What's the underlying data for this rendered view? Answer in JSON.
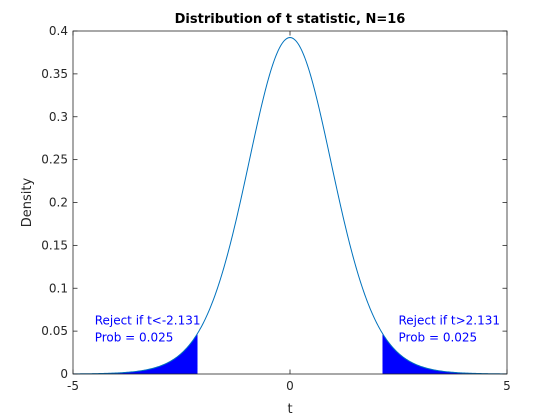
{
  "chart_data": {
    "type": "line",
    "title": "Distribution of t statistic, N=16",
    "xlabel": "t",
    "ylabel": "Density",
    "xlim": [
      -5,
      5
    ],
    "ylim": [
      0,
      0.4
    ],
    "x_ticks": [
      -5,
      0,
      5
    ],
    "y_ticks": [
      0,
      0.05,
      0.1,
      0.15,
      0.2,
      0.25,
      0.3,
      0.35,
      0.4
    ],
    "x_tick_labels": [
      "-5",
      "0",
      "5"
    ],
    "y_tick_labels": [
      "0",
      "0.05",
      "0.1",
      "0.15",
      "0.2",
      "0.25",
      "0.3",
      "0.35",
      "0.4"
    ],
    "grid": false,
    "series": [
      {
        "distribution": "Student t",
        "degrees_of_freedom": 15,
        "color": "#0072bd"
      }
    ],
    "critical_values": [
      -2.131,
      2.131
    ],
    "shaded_regions": [
      {
        "from": -5,
        "to": -2.131,
        "color": "#0000ff"
      },
      {
        "from": 2.131,
        "to": 5,
        "color": "#0000ff"
      }
    ],
    "annotations": [
      {
        "lines": [
          "Reject if t<-2.131",
          "Prob = 0.025"
        ],
        "x": -4.5,
        "y": 0.0575,
        "color": "#0000ff"
      },
      {
        "lines": [
          "Reject if t>2.131",
          "Prob = 0.025"
        ],
        "x": 2.5,
        "y": 0.0575,
        "color": "#0000ff"
      }
    ]
  }
}
